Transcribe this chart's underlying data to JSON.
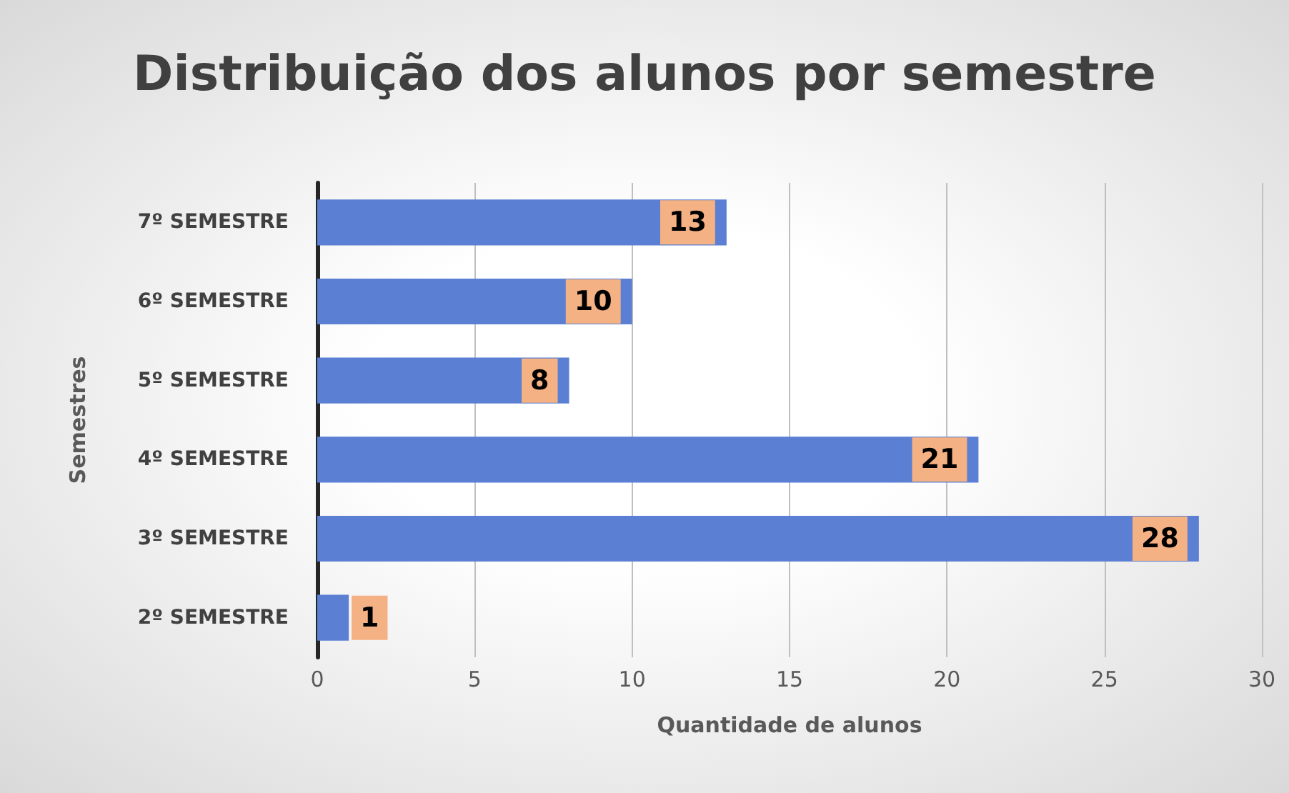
{
  "chart_data": {
    "type": "bar",
    "orientation": "horizontal",
    "title": "Distribuição dos alunos por semestre",
    "xlabel": "Quantidade de alunos",
    "ylabel": "Semestres",
    "categories": [
      "7º SEMESTRE",
      "6º SEMESTRE",
      "5º SEMESTRE",
      "4º SEMESTRE",
      "3º SEMESTRE",
      "2º SEMESTRE"
    ],
    "values": [
      13,
      10,
      8,
      21,
      28,
      1
    ],
    "color": "#5a7fd3",
    "xlim": [
      0,
      30
    ],
    "xticks": [
      0,
      5,
      10,
      15,
      20,
      25,
      30
    ],
    "grid": "x",
    "data_labels": true
  }
}
